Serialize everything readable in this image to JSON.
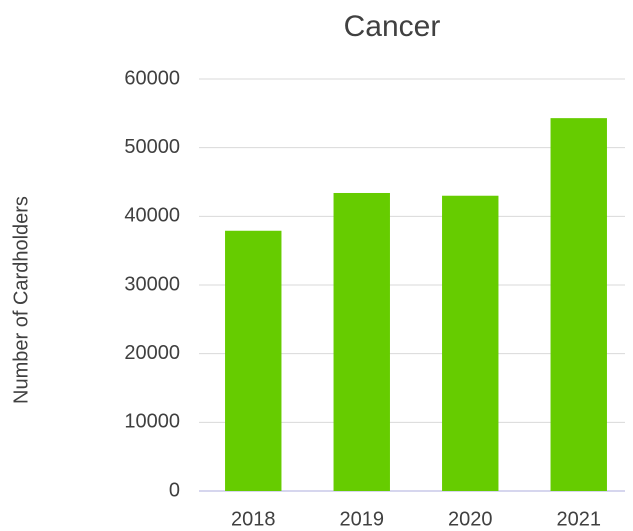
{
  "chart_data": {
    "type": "bar",
    "title": "Cancer",
    "y_label": "Number of Cardholders",
    "categories": [
      "2018",
      "2019",
      "2020",
      "2021"
    ],
    "values": [
      37900,
      43400,
      43000,
      54300
    ],
    "color": "#66cc00",
    "ylim": [
      0,
      60000
    ],
    "yticks": [
      0,
      10000,
      20000,
      30000,
      40000,
      50000,
      60000
    ],
    "grid": true
  }
}
